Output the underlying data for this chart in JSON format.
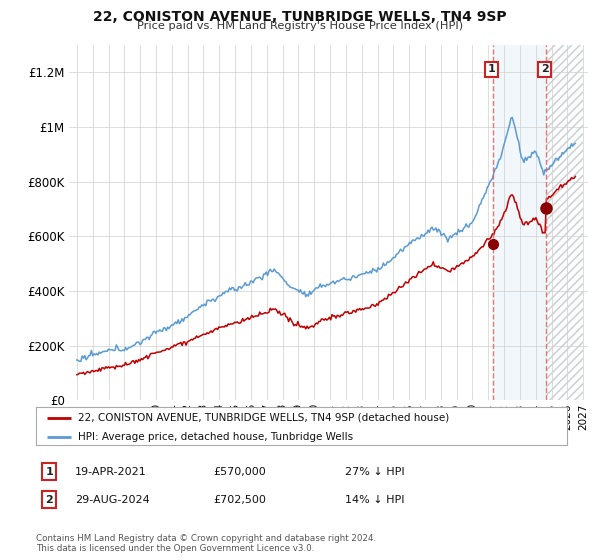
{
  "title": "22, CONISTON AVENUE, TUNBRIDGE WELLS, TN4 9SP",
  "subtitle": "Price paid vs. HM Land Registry's House Price Index (HPI)",
  "legend_line1": "22, CONISTON AVENUE, TUNBRIDGE WELLS, TN4 9SP (detached house)",
  "legend_line2": "HPI: Average price, detached house, Tunbridge Wells",
  "annotation1_date": "19-APR-2021",
  "annotation1_price": "£570,000",
  "annotation1_hpi": "27% ↓ HPI",
  "annotation1_year": 2021.3,
  "annotation1_value": 570000,
  "annotation2_date": "29-AUG-2024",
  "annotation2_price": "£702,500",
  "annotation2_hpi": "14% ↓ HPI",
  "annotation2_year": 2024.67,
  "annotation2_value": 702500,
  "hpi_color": "#5b9bd5",
  "price_color": "#c00000",
  "dot_color": "#8b0000",
  "background_color": "#ffffff",
  "grid_color": "#d0d0d0",
  "shade_color": "#cce0f5",
  "hatch_color": "#cccccc",
  "vline_color": "#e06060",
  "ylim": [
    0,
    1300000
  ],
  "yticks": [
    0,
    200000,
    400000,
    600000,
    800000,
    1000000,
    1200000
  ],
  "xstart": 1995,
  "xend": 2027
}
